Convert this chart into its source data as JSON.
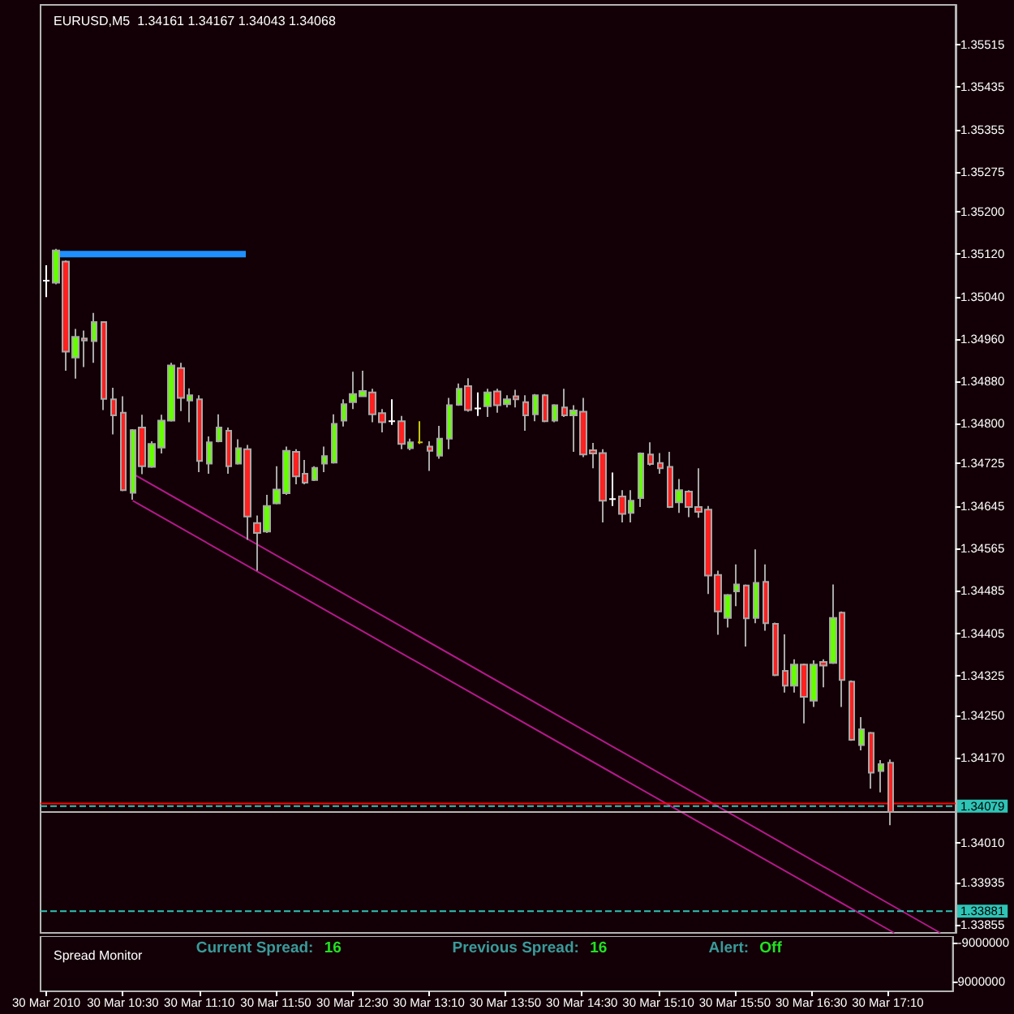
{
  "chart_data": [
    {
      "type": "candlestick",
      "title": "EURUSD,M5  1.34161 1.34167 1.34043 1.34068",
      "x": [
        "2010-03-30T09:50",
        "2010-03-30T09:55",
        "2010-03-30T10:00",
        "2010-03-30T10:05",
        "2010-03-30T10:10",
        "2010-03-30T10:15",
        "2010-03-30T10:20",
        "2010-03-30T10:25",
        "2010-03-30T10:30",
        "2010-03-30T10:35",
        "2010-03-30T10:40",
        "2010-03-30T10:45",
        "2010-03-30T10:50",
        "2010-03-30T10:55",
        "2010-03-30T11:00",
        "2010-03-30T11:05",
        "2010-03-30T11:10",
        "2010-03-30T11:15",
        "2010-03-30T11:20",
        "2010-03-30T11:25",
        "2010-03-30T11:30",
        "2010-03-30T11:35",
        "2010-03-30T11:40",
        "2010-03-30T11:45",
        "2010-03-30T11:50",
        "2010-03-30T11:55",
        "2010-03-30T12:00",
        "2010-03-30T12:05",
        "2010-03-30T12:10",
        "2010-03-30T12:15",
        "2010-03-30T12:20",
        "2010-03-30T12:25",
        "2010-03-30T12:30",
        "2010-03-30T12:35",
        "2010-03-30T12:40",
        "2010-03-30T12:45",
        "2010-03-30T12:50",
        "2010-03-30T12:55",
        "2010-03-30T13:00",
        "2010-03-30T13:05",
        "2010-03-30T13:10",
        "2010-03-30T13:15",
        "2010-03-30T13:20",
        "2010-03-30T13:25",
        "2010-03-30T13:30",
        "2010-03-30T13:35",
        "2010-03-30T13:40",
        "2010-03-30T13:45",
        "2010-03-30T13:50",
        "2010-03-30T13:55",
        "2010-03-30T14:00",
        "2010-03-30T14:05",
        "2010-03-30T14:10",
        "2010-03-30T14:15",
        "2010-03-30T14:20",
        "2010-03-30T14:25",
        "2010-03-30T14:30",
        "2010-03-30T14:35",
        "2010-03-30T14:40",
        "2010-03-30T14:45",
        "2010-03-30T14:50",
        "2010-03-30T14:55",
        "2010-03-30T15:00",
        "2010-03-30T15:05",
        "2010-03-30T15:10",
        "2010-03-30T15:15",
        "2010-03-30T15:20",
        "2010-03-30T15:25",
        "2010-03-30T15:30",
        "2010-03-30T15:35",
        "2010-03-30T15:40",
        "2010-03-30T15:45",
        "2010-03-30T15:50",
        "2010-03-30T15:55",
        "2010-03-30T16:00",
        "2010-03-30T16:05",
        "2010-03-30T16:10",
        "2010-03-30T16:15",
        "2010-03-30T16:20",
        "2010-03-30T16:25",
        "2010-03-30T16:30",
        "2010-03-30T16:35",
        "2010-03-30T16:40",
        "2010-03-30T16:45",
        "2010-03-30T16:50",
        "2010-03-30T16:55",
        "2010-03-30T17:00",
        "2010-03-30T17:05",
        "2010-03-30T17:10"
      ],
      "ohlc": [
        [
          1.3507,
          1.35099,
          1.35039,
          1.3507
        ],
        [
          1.35066,
          1.3513,
          1.35063,
          1.35127
        ],
        [
          1.35106,
          1.35108,
          1.349,
          1.34936
        ],
        [
          1.34925,
          1.34979,
          1.34885,
          1.34964
        ],
        [
          1.34961,
          1.34976,
          1.34907,
          1.34957
        ],
        [
          1.34956,
          1.35009,
          1.34915,
          1.34992
        ],
        [
          1.34992,
          1.34993,
          1.34826,
          1.34847
        ],
        [
          1.34846,
          1.34868,
          1.3478,
          1.34816
        ],
        [
          1.34821,
          1.34852,
          1.34673,
          1.34675
        ],
        [
          1.3467,
          1.3479,
          1.34657,
          1.34788
        ],
        [
          1.34793,
          1.34817,
          1.34705,
          1.3472
        ],
        [
          1.34719,
          1.34767,
          1.34717,
          1.34762
        ],
        [
          1.34755,
          1.34817,
          1.34744,
          1.34806
        ],
        [
          1.34806,
          1.34915,
          1.34804,
          1.3491
        ],
        [
          1.34905,
          1.34915,
          1.34824,
          1.34849
        ],
        [
          1.34844,
          1.34867,
          1.34803,
          1.34854
        ],
        [
          1.34846,
          1.34854,
          1.34709,
          1.3473
        ],
        [
          1.34725,
          1.34776,
          1.34706,
          1.34765
        ],
        [
          1.34767,
          1.34818,
          1.34765,
          1.34793
        ],
        [
          1.34787,
          1.34793,
          1.34706,
          1.3472
        ],
        [
          1.34725,
          1.34771,
          1.34723,
          1.34754
        ],
        [
          1.34752,
          1.3476,
          1.34581,
          1.34625
        ],
        [
          1.34613,
          1.34627,
          1.34523,
          1.34594
        ],
        [
          1.34597,
          1.34666,
          1.34594,
          1.34645
        ],
        [
          1.3465,
          1.3472,
          1.34648,
          1.34676
        ],
        [
          1.34669,
          1.34757,
          1.34666,
          1.34749
        ],
        [
          1.34747,
          1.34752,
          1.34686,
          1.34701
        ],
        [
          1.34706,
          1.34732,
          1.34686,
          1.34689
        ],
        [
          1.34694,
          1.3472,
          1.34692,
          1.34717
        ],
        [
          1.34725,
          1.34757,
          1.34709,
          1.34739
        ],
        [
          1.34727,
          1.34818,
          1.34725,
          1.348
        ],
        [
          1.34806,
          1.34846,
          1.34795,
          1.34837
        ],
        [
          1.34841,
          1.34898,
          1.34828,
          1.34856
        ],
        [
          1.34852,
          1.349,
          1.34851,
          1.34862
        ],
        [
          1.34859,
          1.34866,
          1.34803,
          1.34818
        ],
        [
          1.3482,
          1.34828,
          1.34784,
          1.34803
        ],
        [
          1.34805,
          1.34846,
          1.34798,
          1.34805
        ],
        [
          1.34805,
          1.34815,
          1.34752,
          1.34762
        ],
        [
          1.34754,
          1.34772,
          1.3475,
          1.34765
        ],
        [
          1.34765,
          1.34805,
          1.34762,
          1.34765
        ],
        [
          1.34757,
          1.34767,
          1.34711,
          1.34749
        ],
        [
          1.3474,
          1.34796,
          1.34734,
          1.34772
        ],
        [
          1.34772,
          1.34849,
          1.34752,
          1.34835
        ],
        [
          1.34836,
          1.34876,
          1.34834,
          1.34866
        ],
        [
          1.34871,
          1.34886,
          1.34823,
          1.34826
        ],
        [
          1.34829,
          1.34859,
          1.34815,
          1.34829
        ],
        [
          1.34833,
          1.34866,
          1.34813,
          1.34859
        ],
        [
          1.34861,
          1.34866,
          1.34821,
          1.34835
        ],
        [
          1.34837,
          1.34854,
          1.34831,
          1.34846
        ],
        [
          1.34852,
          1.34864,
          1.34831,
          1.34846
        ],
        [
          1.34841,
          1.34854,
          1.34787,
          1.34816
        ],
        [
          1.34818,
          1.34856,
          1.34805,
          1.34854
        ],
        [
          1.34854,
          1.34856,
          1.34803,
          1.34805
        ],
        [
          1.34806,
          1.34837,
          1.34803,
          1.34835
        ],
        [
          1.34831,
          1.34866,
          1.34813,
          1.34816
        ],
        [
          1.34816,
          1.34835,
          1.34747,
          1.34825
        ],
        [
          1.34823,
          1.34849,
          1.34737,
          1.34742
        ],
        [
          1.3475,
          1.34764,
          1.34716,
          1.34744
        ],
        [
          1.34745,
          1.34752,
          1.34614,
          1.34655
        ],
        [
          1.34658,
          1.34708,
          1.34645,
          1.34658
        ],
        [
          1.34663,
          1.34675,
          1.34614,
          1.3463
        ],
        [
          1.34632,
          1.34675,
          1.34614,
          1.34655
        ],
        [
          1.3466,
          1.34746,
          1.34643,
          1.34744
        ],
        [
          1.34742,
          1.34765,
          1.34721,
          1.34724
        ],
        [
          1.34726,
          1.34745,
          1.34706,
          1.34716
        ],
        [
          1.34719,
          1.34747,
          1.34641,
          1.34643
        ],
        [
          1.34652,
          1.34696,
          1.34632,
          1.34675
        ],
        [
          1.34672,
          1.34675,
          1.34624,
          1.34643
        ],
        [
          1.34643,
          1.34716,
          1.34623,
          1.34634
        ],
        [
          1.34638,
          1.34645,
          1.34479,
          1.34514
        ],
        [
          1.34515,
          1.34523,
          1.34402,
          1.34446
        ],
        [
          1.34434,
          1.34479,
          1.34416,
          1.34477
        ],
        [
          1.34484,
          1.34535,
          1.34456,
          1.34497
        ],
        [
          1.34495,
          1.34497,
          1.3438,
          1.34433
        ],
        [
          1.34434,
          1.34563,
          1.34424,
          1.345
        ],
        [
          1.34502,
          1.34535,
          1.3441,
          1.34424
        ],
        [
          1.34423,
          1.34425,
          1.34324,
          1.34326
        ],
        [
          1.34334,
          1.34403,
          1.34293,
          1.34306
        ],
        [
          1.34306,
          1.34356,
          1.34293,
          1.34346
        ],
        [
          1.34346,
          1.34348,
          1.34235,
          1.34285
        ],
        [
          1.34278,
          1.34354,
          1.34266,
          1.34346
        ],
        [
          1.34351,
          1.34356,
          1.34303,
          1.34344
        ],
        [
          1.34349,
          1.34497,
          1.34347,
          1.34434
        ],
        [
          1.34444,
          1.34446,
          1.34266,
          1.34317
        ],
        [
          1.34314,
          1.34316,
          1.34202,
          1.34204
        ],
        [
          1.34194,
          1.34247,
          1.34184,
          1.34224
        ],
        [
          1.34217,
          1.34219,
          1.34112,
          1.34142
        ],
        [
          1.34145,
          1.34166,
          1.34105,
          1.34158
        ],
        [
          1.34161,
          1.34167,
          1.34043,
          1.34068
        ]
      ],
      "colors": [
        "#ffffff",
        "#66ff00",
        "#ff2020",
        "#66ff00",
        "#ff2020",
        "#66ff00",
        "#ff2020",
        "#ff2020",
        "#ff2020",
        "#66ff00",
        "#ff2020",
        "#66ff00",
        "#66ff00",
        "#66ff00",
        "#ff2020",
        "#66ff00",
        "#ff2020",
        "#66ff00",
        "#66ff00",
        "#ff2020",
        "#66ff00",
        "#ff2020",
        "#ff2020",
        "#66ff00",
        "#66ff00",
        "#66ff00",
        "#ff2020",
        "#ff2020",
        "#66ff00",
        "#66ff00",
        "#66ff00",
        "#66ff00",
        "#66ff00",
        "#66ff00",
        "#ff2020",
        "#ff2020",
        "#ffffff",
        "#ff2020",
        "#66ff00",
        "#c8c800",
        "#ff2020",
        "#66ff00",
        "#66ff00",
        "#66ff00",
        "#ff2020",
        "#ffffff",
        "#66ff00",
        "#ff2020",
        "#66ff00",
        "#ff2020",
        "#ff2020",
        "#66ff00",
        "#ff2020",
        "#66ff00",
        "#ff2020",
        "#66ff00",
        "#ff2020",
        "#ff2020",
        "#ff2020",
        "#ffffff",
        "#ff2020",
        "#66ff00",
        "#66ff00",
        "#ff2020",
        "#ff2020",
        "#ff2020",
        "#66ff00",
        "#ff2020",
        "#ff2020",
        "#ff2020",
        "#ff2020",
        "#66ff00",
        "#66ff00",
        "#ff2020",
        "#66ff00",
        "#ff2020",
        "#ff2020",
        "#ff2020",
        "#66ff00",
        "#ff2020",
        "#66ff00",
        "#ff2020",
        "#66ff00",
        "#ff2020",
        "#ff2020",
        "#66ff00",
        "#ff2020",
        "#66ff00",
        "#ff2020"
      ],
      "series": [
        {
          "type": "line",
          "x": [
            "2010-03-30T09:55",
            "2010-03-30T11:34"
          ],
          "values": [
            1.3512,
            1.3512
          ],
          "color": "#1e90ff"
        },
        {
          "type": "line",
          "x": [
            "2010-03-30T10:35",
            "2010-03-30T17:36"
          ],
          "values": [
            1.34706,
            1.3384
          ],
          "color": "#b4198c"
        },
        {
          "type": "line",
          "x": [
            "2010-03-30T10:35",
            "2010-03-30T17:12"
          ],
          "values": [
            1.34655,
            1.3384
          ],
          "color": "#b4198c"
        }
      ],
      "ref_lines": [
        {
          "axis": "y",
          "value": 1.34084,
          "color": "#ff0000"
        },
        {
          "axis": "y",
          "value": 1.34079,
          "label": "1.34079",
          "color": "#2ec4b6",
          "line_style": "dashed"
        },
        {
          "axis": "y",
          "value": 1.34068,
          "color": "#b4b4b4"
        },
        {
          "axis": "y",
          "value": 1.33881,
          "label": "1.33881",
          "color": "#2ec4b6",
          "line_style": "dashed"
        }
      ],
      "xlim": [
        "2010-03-30T09:47",
        "2010-03-30T17:44"
      ],
      "ylim": [
        1.3384,
        1.3559
      ],
      "yticks": [
        1.35515,
        1.35435,
        1.35355,
        1.35275,
        {
          "value": 1.352,
          "label": "1.35200"
        },
        {
          "value": 1.3512,
          "label": "1.35120"
        },
        {
          "value": 1.3504,
          "label": "1.35040"
        },
        {
          "value": 1.3496,
          "label": "1.34960"
        },
        {
          "value": 1.3488,
          "label": "1.34880"
        },
        {
          "value": 1.348,
          "label": "1.34800"
        },
        1.34725,
        1.34645,
        1.34565,
        1.34485,
        1.34405,
        1.34325,
        {
          "value": 1.3425,
          "label": "1.34250"
        },
        {
          "value": 1.3417,
          "label": "1.34170"
        },
        {
          "value": 1.3401,
          "label": "1.34010"
        },
        1.33935,
        1.33855
      ],
      "tick_labels": "y"
    },
    {
      "type": "line",
      "title": "Spread Monitor",
      "annotations": [
        "Current Spread: 16",
        "Previous Spread: 16",
        "Alert: Off"
      ],
      "xlim": [
        "2010-03-30T09:47",
        "2010-03-30T17:44"
      ],
      "xticks": [
        {
          "value": "2010-03-30T09:50",
          "label": "30 Mar 2010"
        },
        {
          "value": "2010-03-30T10:30",
          "label": "30 Mar 10:30"
        },
        {
          "value": "2010-03-30T11:10",
          "label": "30 Mar 11:10"
        },
        {
          "value": "2010-03-30T11:50",
          "label": "30 Mar 11:50"
        },
        {
          "value": "2010-03-30T12:30",
          "label": "30 Mar 12:30"
        },
        {
          "value": "2010-03-30T13:10",
          "label": "30 Mar 13:10"
        },
        {
          "value": "2010-03-30T13:50",
          "label": "30 Mar 13:50"
        },
        {
          "value": "2010-03-30T14:30",
          "label": "30 Mar 14:30"
        },
        {
          "value": "2010-03-30T15:10",
          "label": "30 Mar 15:10"
        },
        {
          "value": "2010-03-30T15:50",
          "label": "30 Mar 15:50"
        },
        {
          "value": "2010-03-30T16:30",
          "label": "30 Mar 16:30"
        },
        {
          "value": "2010-03-30T17:10",
          "label": "30 Mar 17:10"
        }
      ],
      "ylim": [
        13500000,
        -12000000
      ],
      "yticks": [
        -9000000,
        9000000
      ]
    }
  ]
}
